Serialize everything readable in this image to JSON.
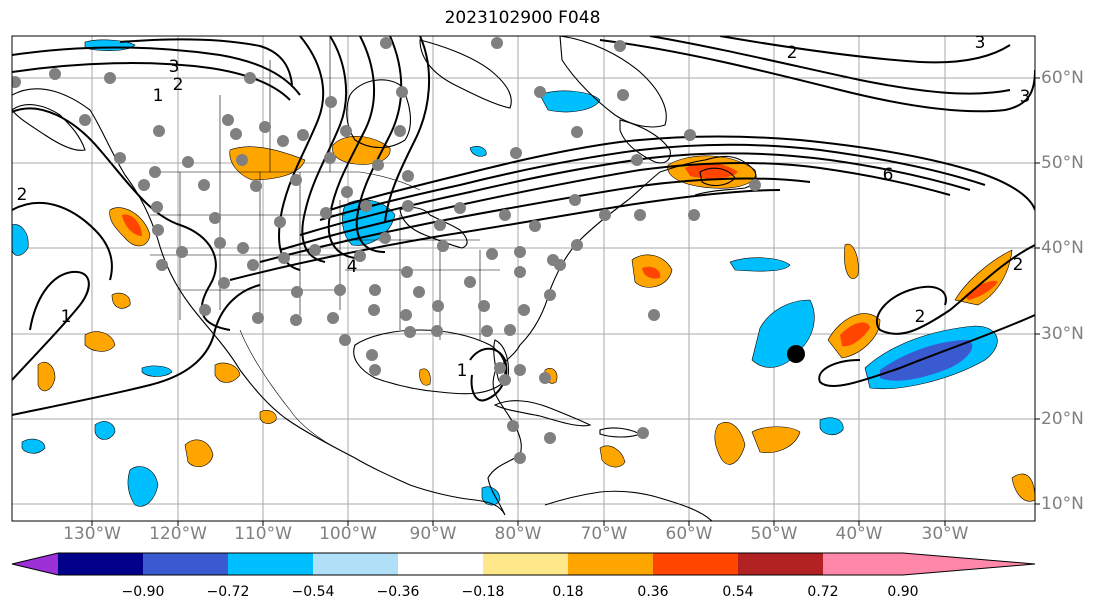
{
  "title": "2023102900 F048",
  "map": {
    "latitude_labels": [
      "60°N",
      "50°N",
      "40°N",
      "30°N",
      "20°N",
      "10°N"
    ],
    "longitude_labels": [
      "130°W",
      "120°W",
      "110°W",
      "100°W",
      "90°W",
      "80°W",
      "70°W",
      "60°W",
      "50°W",
      "40°W",
      "30°W"
    ],
    "contour_labels": [
      "3",
      "1",
      "2",
      "2",
      "2",
      "6",
      "3",
      "3",
      "1",
      "2",
      "1",
      "2",
      "4"
    ],
    "station_marker": "black-dot",
    "observation_marker": "grey-dot"
  },
  "colorbar": {
    "ticks": [
      "−0.90",
      "−0.72",
      "−0.54",
      "−0.36",
      "−0.18",
      "0.18",
      "0.36",
      "0.54",
      "0.72",
      "0.90"
    ],
    "colors": [
      "#9b30d6",
      "#00008b",
      "#3a5bd0",
      "#00bfff",
      "#b0e0f8",
      "#ffffff",
      "#ffe88a",
      "#ffa500",
      "#ff4500",
      "#b22222",
      "#ff88aa"
    ]
  }
}
